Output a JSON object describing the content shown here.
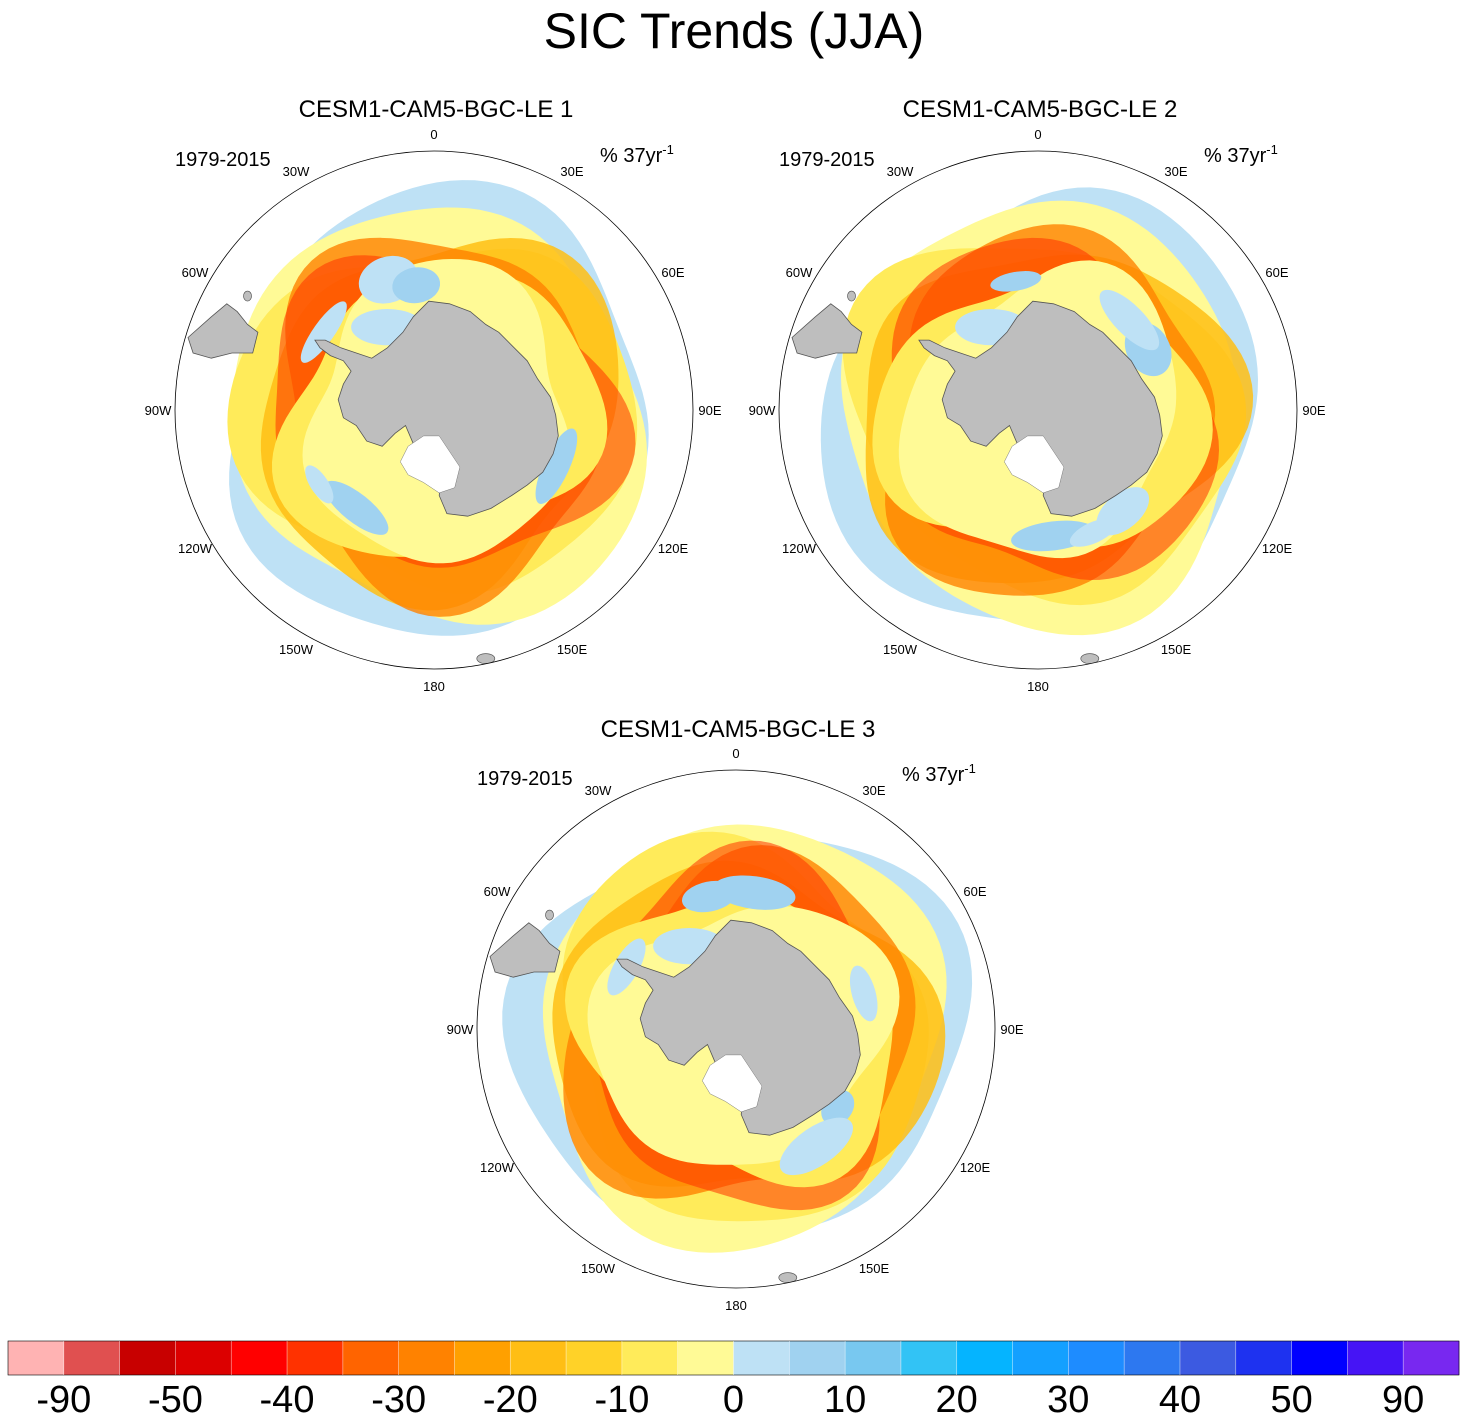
{
  "figure": {
    "title": "SIC Trends (JJA)",
    "units_prefix": "% 37yr",
    "units_exponent": "-1"
  },
  "panels": [
    {
      "title": "CESM1-CAM5-BGC-LE 1",
      "period": "1979-2015",
      "pattern_seed": 1
    },
    {
      "title": "CESM1-CAM5-BGC-LE 2",
      "period": "1979-2015",
      "pattern_seed": 2
    },
    {
      "title": "CESM1-CAM5-BGC-LE 3",
      "period": "1979-2015",
      "pattern_seed": 3
    }
  ],
  "longitude_labels": [
    "0",
    "30E",
    "60E",
    "90E",
    "120E",
    "150E",
    "180",
    "150W",
    "120W",
    "90W",
    "60W",
    "30W"
  ],
  "colorbar": {
    "colors": [
      "#ffb3b3",
      "#e05050",
      "#c80000",
      "#dc0000",
      "#ff0000",
      "#ff3200",
      "#ff6400",
      "#ff8200",
      "#ffa000",
      "#ffbe14",
      "#ffd228",
      "#ffeb5a",
      "#fffa96",
      "#bee1f5",
      "#a0d2f0",
      "#78c8f0",
      "#32c3f5",
      "#05b4ff",
      "#14a0ff",
      "#1e8cff",
      "#2d78f0",
      "#3c5ae1",
      "#1e32f0",
      "#0000ff",
      "#4614f5",
      "#7828f0"
    ],
    "tick_labels": [
      "-90",
      "-50",
      "-40",
      "-30",
      "-20",
      "-10",
      "0",
      "10",
      "20",
      "30",
      "40",
      "50",
      "90"
    ]
  }
}
